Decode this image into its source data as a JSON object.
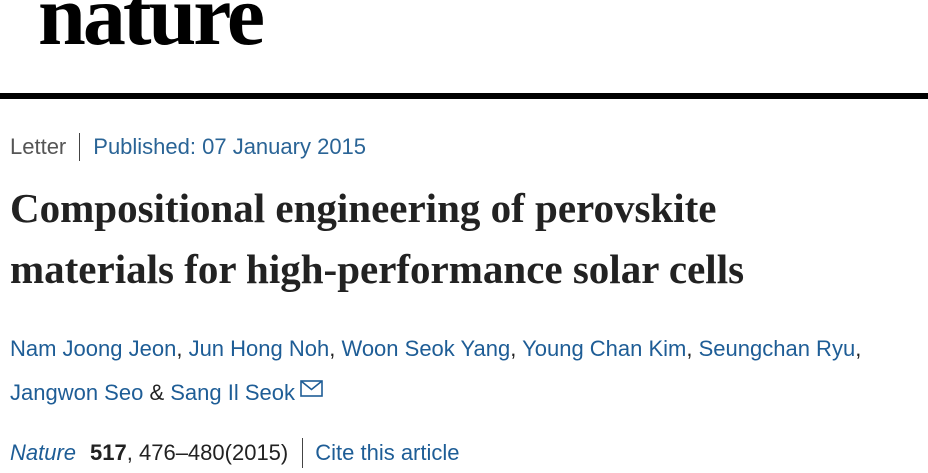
{
  "site": {
    "logo_text": "nature"
  },
  "meta": {
    "article_type": "Letter",
    "published_label": "Published: 07 January 2015"
  },
  "article": {
    "title_line1": "Compositional engineering of perovskite",
    "title_line2": "materials for high-performance solar cells"
  },
  "authors": {
    "list": [
      "Nam Joong Jeon",
      "Jun Hong Noh",
      "Woon Seok Yang",
      "Young Chan Kim",
      "Seungchan Ryu",
      "Jangwon Seo",
      "Sang Il Seok"
    ],
    "separator": ", ",
    "final_separator": " & ",
    "contact_icon": "mail-icon"
  },
  "citation": {
    "journal": "Nature",
    "volume": "517",
    "pages": ", 476–480",
    "year": "(2015)",
    "cite_label": "Cite this article"
  },
  "colors": {
    "link": "#1e5d96",
    "text": "#222222",
    "rule": "#000000"
  }
}
